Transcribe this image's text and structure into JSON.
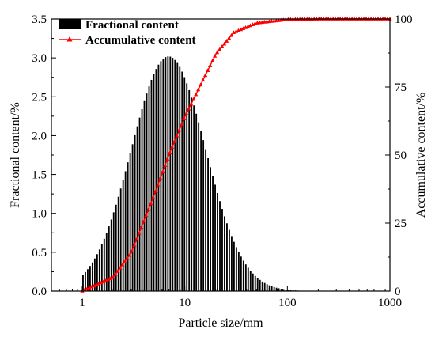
{
  "chart_data": {
    "type": "bar+line",
    "xlabel": "Particle size/mm",
    "ylabel_left": "Fractional content/%",
    "ylabel_right": "Accumulative content/%",
    "x_scale": "log",
    "xlim": [
      0.5,
      1000
    ],
    "x_ticks": [
      1,
      10,
      100,
      1000
    ],
    "x_tick_labels": [
      "1",
      "10",
      "100",
      "1000"
    ],
    "ylim_left": [
      0,
      3.5
    ],
    "y_ticks_left": [
      "0.0",
      "0.5",
      "1.0",
      "1.5",
      "2.0",
      "2.5",
      "3.0",
      "3.5"
    ],
    "ylim_right": [
      0,
      100
    ],
    "y_ticks_right": [
      "0",
      "25",
      "50",
      "75",
      "100"
    ],
    "grid": false,
    "legend": {
      "position": "top-left",
      "entries": [
        {
          "name": "Fractional content",
          "marker": "filled-rect",
          "color": "#000000"
        },
        {
          "name": "Accumulative content",
          "marker": "red-line-triangle",
          "color": "#ff0000"
        }
      ]
    },
    "colors": {
      "bars": "#000000",
      "line": "#ff0000"
    },
    "series": [
      {
        "name": "Fractional content",
        "kind": "bar",
        "axis": "left",
        "distribution": "lognormal",
        "peak_size_mm": 7,
        "peak_value": 3.02,
        "geometric_sd": 2.3,
        "size_range_mm": [
          1,
          200
        ],
        "bin_count": 100
      },
      {
        "name": "Accumulative content",
        "kind": "line",
        "axis": "right",
        "points": [
          [
            1,
            0
          ],
          [
            2,
            5
          ],
          [
            3,
            14
          ],
          [
            5,
            35
          ],
          [
            7,
            50
          ],
          [
            10,
            64
          ],
          [
            20,
            87
          ],
          [
            30,
            95
          ],
          [
            50,
            98.5
          ],
          [
            100,
            99.8
          ],
          [
            200,
            100
          ],
          [
            1000,
            100
          ]
        ]
      }
    ]
  }
}
